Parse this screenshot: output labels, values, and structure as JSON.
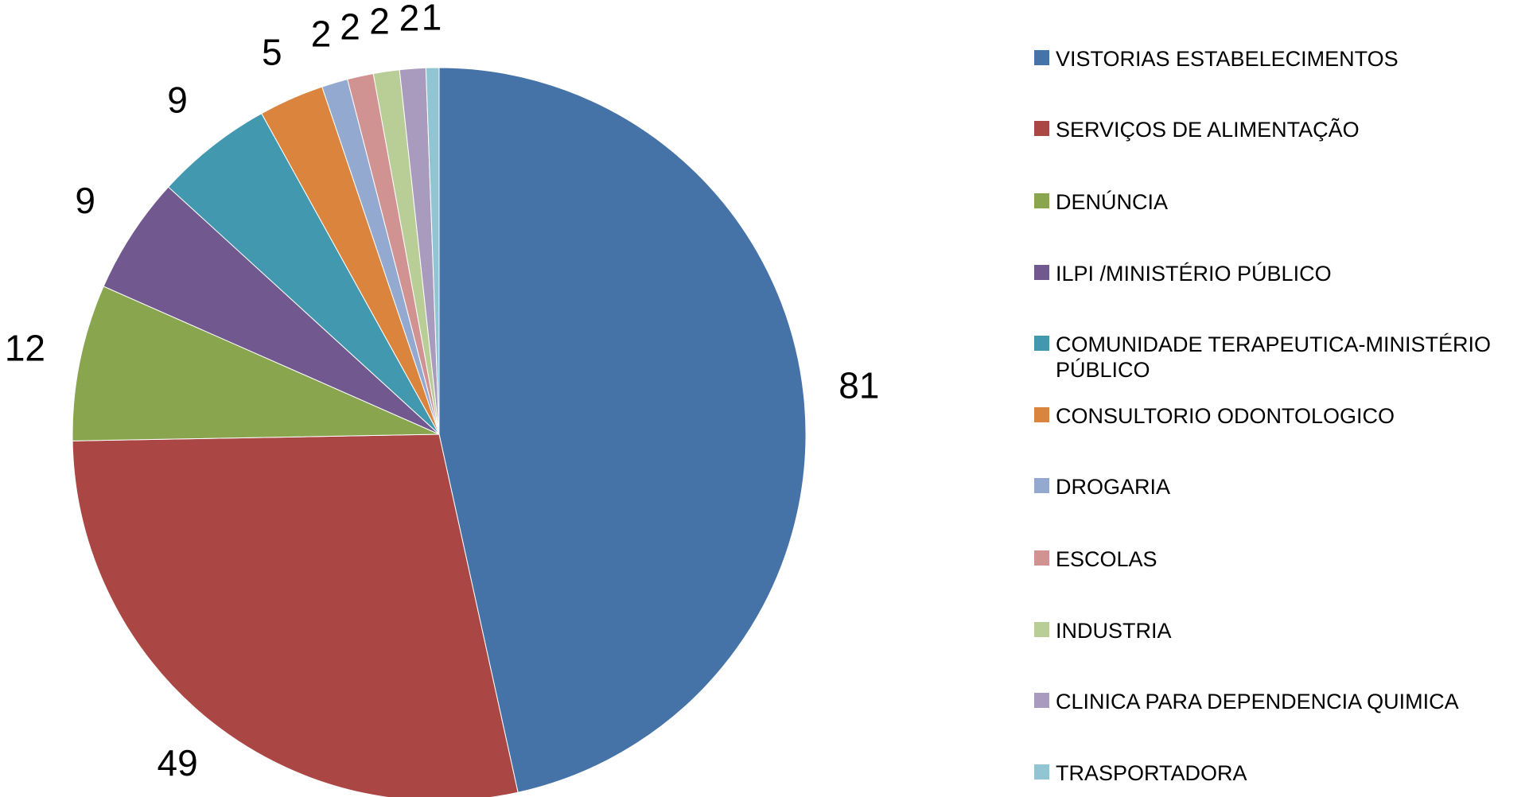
{
  "chart_data": {
    "type": "pie",
    "categories": [
      "VISTORIAS ESTABELECIMENTOS",
      "SERVIÇOS DE ALIMENTAÇÃO",
      "DENÚNCIA",
      "ILPI /MINISTÉRIO PÚBLICO",
      "COMUNIDADE TERAPEUTICA-MINISTÉRIO PÚBLICO",
      "CONSULTORIO ODONTOLOGICO",
      "DROGARIA",
      "ESCOLAS",
      "INDUSTRIA",
      "CLINICA PARA DEPENDENCIA QUIMICA",
      "TRASPORTADORA"
    ],
    "values": [
      81,
      49,
      12,
      9,
      9,
      5,
      2,
      2,
      2,
      2,
      1
    ],
    "colors": [
      "#4572a7",
      "#aa4643",
      "#89a54e",
      "#71588f",
      "#4198af",
      "#db843d",
      "#93a9cf",
      "#d19392",
      "#b9cd96",
      "#a99bbd",
      "#92c5d4"
    ],
    "legend": "right"
  }
}
